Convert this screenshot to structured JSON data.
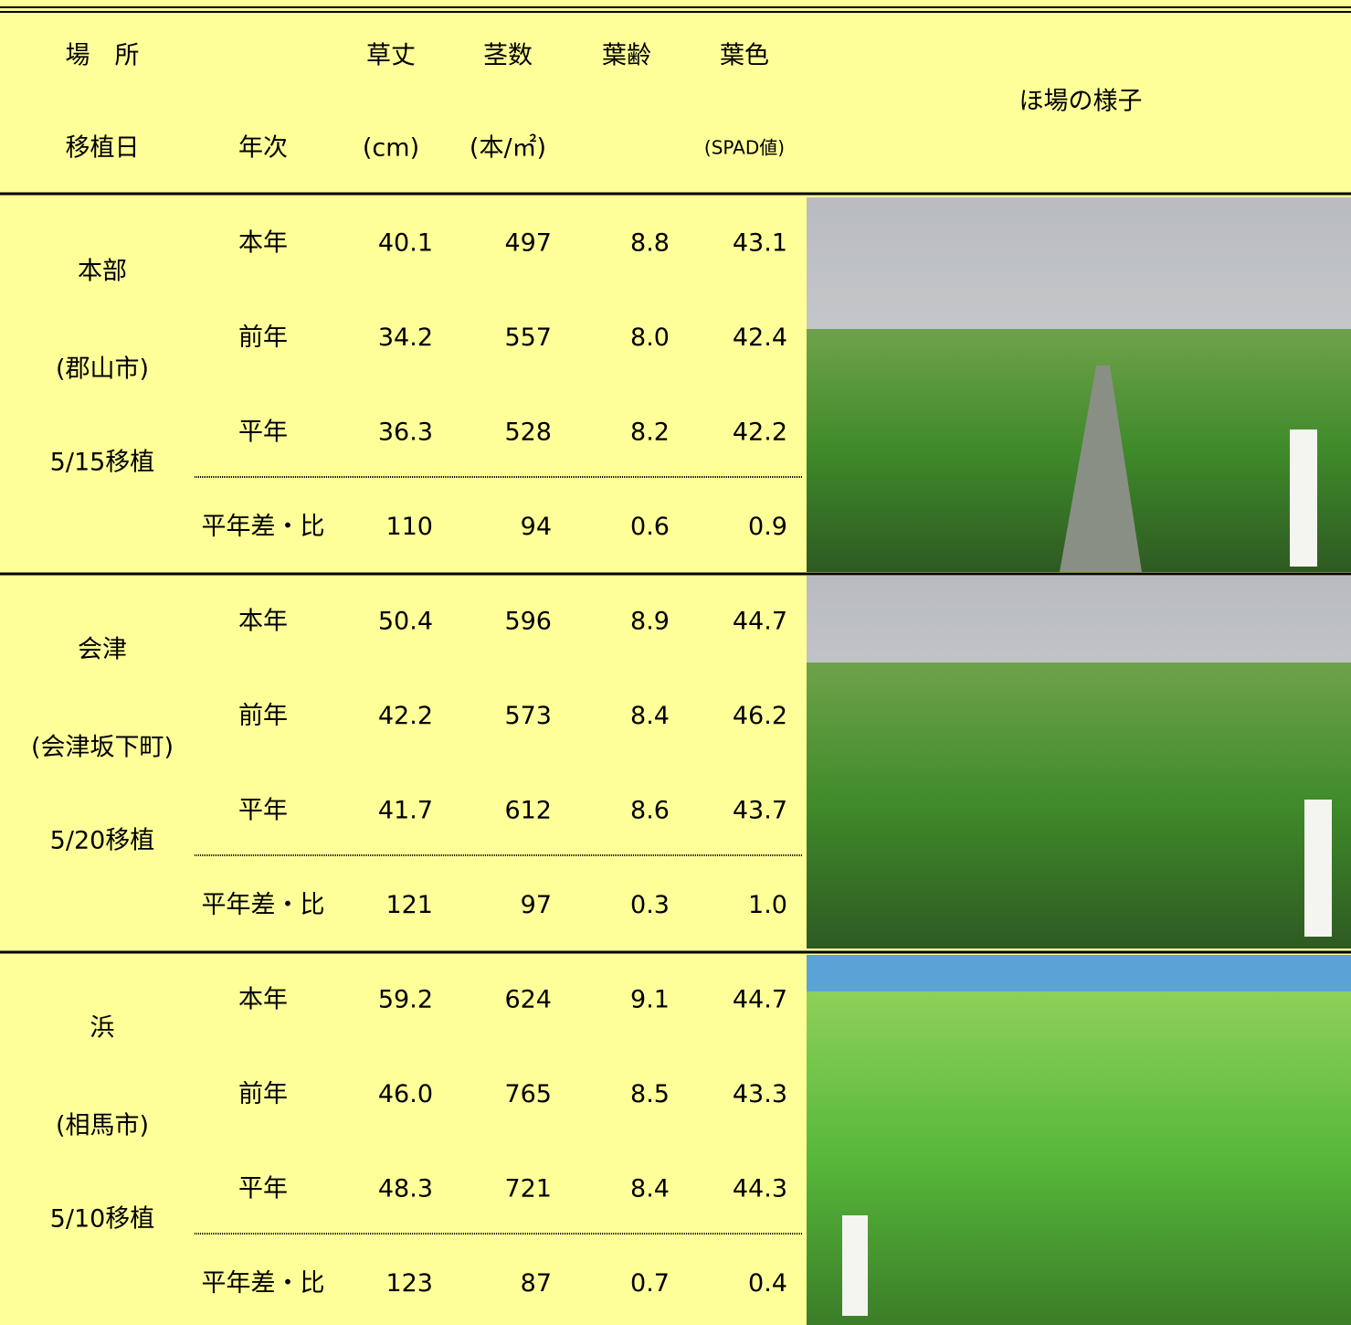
{
  "header": {
    "place": "場　所",
    "planting_date": "移植日",
    "year": "年次",
    "view": "ほ場の様子",
    "columns": [
      {
        "name": "草丈",
        "unit": "(cm)"
      },
      {
        "name": "茎数",
        "unit": "(本/㎡)"
      },
      {
        "name": "葉齢",
        "unit": ""
      },
      {
        "name": "葉色",
        "unit": "(SPAD値)"
      }
    ]
  },
  "sections": [
    {
      "place": "本部",
      "city": "(郡山市)",
      "date": "5/15移植",
      "rows": [
        {
          "label": "本年",
          "values": [
            "40.1",
            "497",
            "8.8",
            "43.1"
          ]
        },
        {
          "label": "前年",
          "values": [
            "34.2",
            "557",
            "8.0",
            "42.4"
          ]
        },
        {
          "label": "平年",
          "values": [
            "36.3",
            "528",
            "8.2",
            "42.2"
          ]
        },
        {
          "label": "平年差・比",
          "values": [
            "110",
            "94",
            "0.6",
            "0.9"
          ]
        }
      ]
    },
    {
      "place": "会津",
      "city": "(会津坂下町)",
      "date": "5/20移植",
      "rows": [
        {
          "label": "本年",
          "values": [
            "50.4",
            "596",
            "8.9",
            "44.7"
          ]
        },
        {
          "label": "前年",
          "values": [
            "42.2",
            "573",
            "8.4",
            "46.2"
          ]
        },
        {
          "label": "平年",
          "values": [
            "41.7",
            "612",
            "8.6",
            "43.7"
          ]
        },
        {
          "label": "平年差・比",
          "values": [
            "121",
            "97",
            "0.3",
            "1.0"
          ]
        }
      ]
    },
    {
      "place": "浜",
      "city": "(相馬市)",
      "date": "5/10移植",
      "rows": [
        {
          "label": "本年",
          "values": [
            "59.2",
            "624",
            "9.1",
            "44.7"
          ]
        },
        {
          "label": "前年",
          "values": [
            "46.0",
            "765",
            "8.5",
            "43.3"
          ]
        },
        {
          "label": "平年",
          "values": [
            "48.3",
            "721",
            "8.4",
            "44.3"
          ]
        },
        {
          "label": "平年差・比",
          "values": [
            "123",
            "87",
            "0.7",
            "0.4"
          ]
        }
      ]
    }
  ]
}
